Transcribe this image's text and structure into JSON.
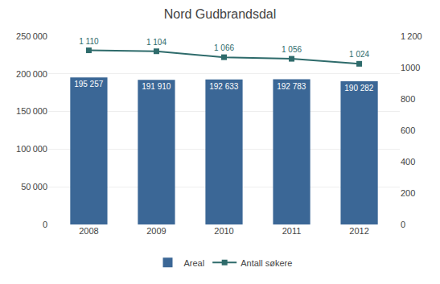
{
  "chart_data": {
    "type": "bar",
    "title": "Nord Gudbrandsdal",
    "categories": [
      "2008",
      "2009",
      "2010",
      "2011",
      "2012"
    ],
    "series": [
      {
        "name": "Areal",
        "type": "bar",
        "color": "#3B6796",
        "values": [
          195257,
          191910,
          192633,
          192783,
          190282
        ],
        "value_labels": [
          "195 257",
          "191 910",
          "192 633",
          "192 783",
          "190 282"
        ]
      },
      {
        "name": "Antall søkere",
        "type": "line",
        "marker": "square",
        "color": "#2E6B6B",
        "axis": "y2",
        "values": [
          1110,
          1104,
          1066,
          1056,
          1024
        ],
        "value_labels": [
          "1 110",
          "1 104",
          "1 066",
          "1 056",
          "1 024"
        ]
      }
    ],
    "ylim": [
      0,
      250000
    ],
    "yticks": [
      0,
      {
        "value": 50000,
        "label": "50 000"
      },
      {
        "value": 100000,
        "label": "100 000"
      },
      {
        "value": 150000,
        "label": "150 000"
      },
      {
        "value": 200000,
        "label": "200 000"
      },
      {
        "value": 250000,
        "label": "250 000"
      }
    ],
    "y2lim": [
      0,
      1200
    ],
    "y2ticks": [
      0,
      200,
      400,
      600,
      800,
      1000,
      {
        "value": 1200,
        "label": "1 200"
      }
    ],
    "grid": true,
    "legend": "bottom",
    "data_labels": true
  }
}
